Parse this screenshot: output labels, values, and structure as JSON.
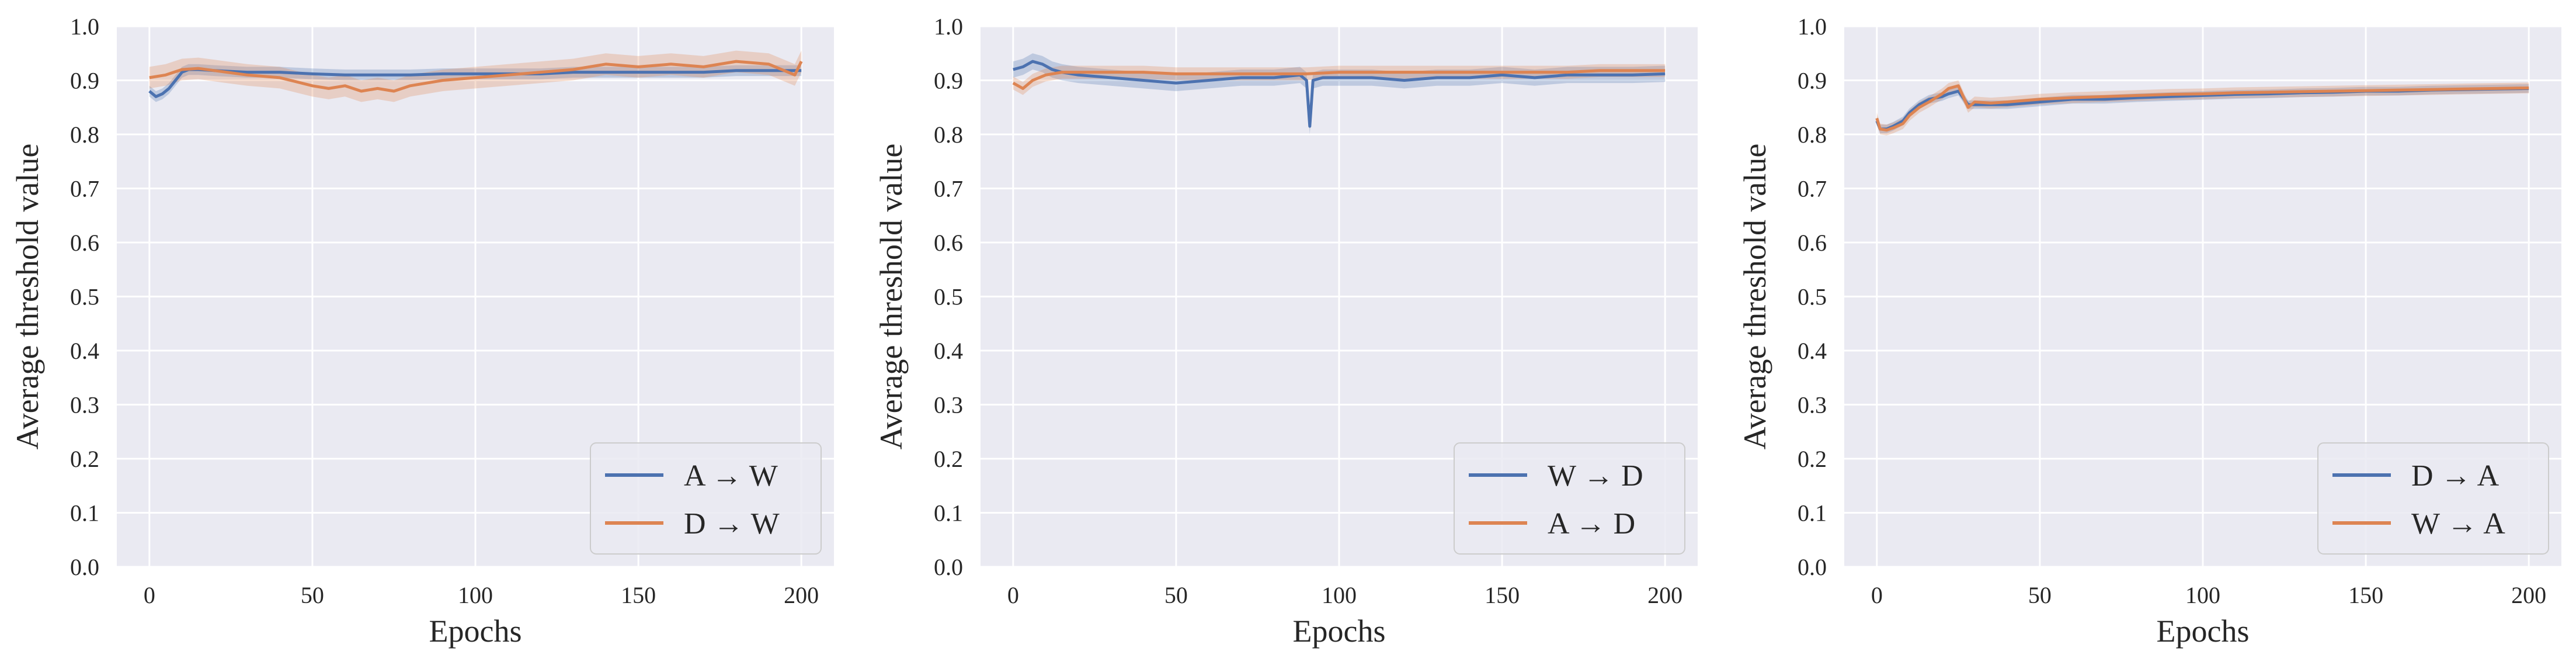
{
  "chart_data": [
    {
      "type": "line",
      "xlabel": "Epochs",
      "ylabel": "Average threshold value",
      "xlim": [
        -10,
        210
      ],
      "ylim": [
        0,
        1
      ],
      "xticks": [
        0,
        50,
        100,
        150,
        200
      ],
      "yticks": [
        0.0,
        0.1,
        0.2,
        0.3,
        0.4,
        0.5,
        0.6,
        0.7,
        0.8,
        0.9,
        1.0
      ],
      "grid": true,
      "legend_position": "bottom-right",
      "series": [
        {
          "name": "A → W",
          "color": "#4c72b0",
          "x": [
            0,
            2,
            4,
            6,
            8,
            10,
            12,
            15,
            20,
            30,
            40,
            50,
            60,
            70,
            80,
            90,
            100,
            110,
            120,
            130,
            140,
            150,
            160,
            170,
            180,
            190,
            200
          ],
          "y": [
            0.88,
            0.87,
            0.875,
            0.885,
            0.9,
            0.915,
            0.92,
            0.92,
            0.918,
            0.915,
            0.915,
            0.912,
            0.91,
            0.91,
            0.91,
            0.912,
            0.912,
            0.912,
            0.912,
            0.915,
            0.915,
            0.915,
            0.915,
            0.915,
            0.918,
            0.918,
            0.918
          ],
          "band": 0.01
        },
        {
          "name": "D → W",
          "color": "#dd8452",
          "x": [
            0,
            5,
            10,
            15,
            20,
            30,
            40,
            50,
            55,
            60,
            65,
            70,
            75,
            80,
            90,
            100,
            110,
            120,
            130,
            140,
            150,
            160,
            170,
            180,
            190,
            198,
            200
          ],
          "y": [
            0.905,
            0.91,
            0.92,
            0.922,
            0.918,
            0.91,
            0.905,
            0.89,
            0.885,
            0.89,
            0.88,
            0.885,
            0.88,
            0.89,
            0.9,
            0.905,
            0.91,
            0.915,
            0.92,
            0.93,
            0.925,
            0.93,
            0.925,
            0.935,
            0.93,
            0.91,
            0.935
          ],
          "band": 0.02
        }
      ]
    },
    {
      "type": "line",
      "xlabel": "Epochs",
      "ylabel": "Average threshold value",
      "xlim": [
        -10,
        210
      ],
      "ylim": [
        0,
        1
      ],
      "xticks": [
        0,
        50,
        100,
        150,
        200
      ],
      "yticks": [
        0.0,
        0.1,
        0.2,
        0.3,
        0.4,
        0.5,
        0.6,
        0.7,
        0.8,
        0.9,
        1.0
      ],
      "grid": true,
      "legend_position": "bottom-right",
      "series": [
        {
          "name": "W → D",
          "color": "#4c72b0",
          "x": [
            0,
            3,
            6,
            9,
            12,
            15,
            20,
            30,
            40,
            50,
            60,
            70,
            80,
            88,
            90,
            91,
            92,
            95,
            100,
            110,
            120,
            130,
            140,
            150,
            160,
            170,
            180,
            190,
            200
          ],
          "y": [
            0.92,
            0.925,
            0.935,
            0.93,
            0.92,
            0.915,
            0.91,
            0.905,
            0.9,
            0.895,
            0.9,
            0.905,
            0.905,
            0.91,
            0.9,
            0.815,
            0.9,
            0.905,
            0.905,
            0.905,
            0.9,
            0.905,
            0.905,
            0.91,
            0.905,
            0.91,
            0.91,
            0.91,
            0.912
          ],
          "band": 0.015
        },
        {
          "name": "A → D",
          "color": "#dd8452",
          "x": [
            0,
            3,
            6,
            10,
            15,
            20,
            30,
            40,
            50,
            60,
            70,
            80,
            90,
            100,
            110,
            120,
            130,
            140,
            150,
            160,
            170,
            180,
            190,
            200
          ],
          "y": [
            0.895,
            0.885,
            0.9,
            0.91,
            0.915,
            0.915,
            0.915,
            0.915,
            0.912,
            0.912,
            0.912,
            0.912,
            0.912,
            0.915,
            0.915,
            0.915,
            0.915,
            0.915,
            0.915,
            0.915,
            0.915,
            0.918,
            0.918,
            0.918
          ],
          "band": 0.012
        }
      ]
    },
    {
      "type": "line",
      "xlabel": "Epochs",
      "ylabel": "Average threshold value",
      "xlim": [
        -10,
        210
      ],
      "ylim": [
        0,
        1
      ],
      "xticks": [
        0,
        50,
        100,
        150,
        200
      ],
      "yticks": [
        0.0,
        0.1,
        0.2,
        0.3,
        0.4,
        0.5,
        0.6,
        0.7,
        0.8,
        0.9,
        1.0
      ],
      "grid": true,
      "legend_position": "bottom-right",
      "series": [
        {
          "name": "D → A",
          "color": "#4c72b0",
          "x": [
            0,
            1,
            3,
            5,
            8,
            10,
            13,
            16,
            20,
            22,
            25,
            28,
            30,
            35,
            40,
            50,
            60,
            70,
            80,
            90,
            100,
            110,
            120,
            130,
            140,
            150,
            160,
            170,
            180,
            190,
            200
          ],
          "y": [
            0.825,
            0.81,
            0.81,
            0.815,
            0.825,
            0.84,
            0.855,
            0.865,
            0.87,
            0.875,
            0.88,
            0.855,
            0.855,
            0.855,
            0.855,
            0.86,
            0.865,
            0.865,
            0.868,
            0.87,
            0.872,
            0.874,
            0.875,
            0.877,
            0.878,
            0.88,
            0.88,
            0.882,
            0.883,
            0.884,
            0.885
          ],
          "band": 0.008
        },
        {
          "name": "W → A",
          "color": "#dd8452",
          "x": [
            0,
            1,
            3,
            5,
            8,
            10,
            13,
            16,
            20,
            22,
            25,
            28,
            30,
            35,
            40,
            50,
            60,
            70,
            80,
            90,
            100,
            110,
            120,
            130,
            140,
            150,
            160,
            170,
            180,
            190,
            200
          ],
          "y": [
            0.83,
            0.81,
            0.808,
            0.812,
            0.82,
            0.835,
            0.85,
            0.86,
            0.875,
            0.885,
            0.89,
            0.85,
            0.86,
            0.858,
            0.86,
            0.865,
            0.868,
            0.87,
            0.872,
            0.874,
            0.875,
            0.877,
            0.878,
            0.879,
            0.88,
            0.881,
            0.882,
            0.883,
            0.884,
            0.885,
            0.886
          ],
          "band": 0.01
        }
      ]
    }
  ]
}
